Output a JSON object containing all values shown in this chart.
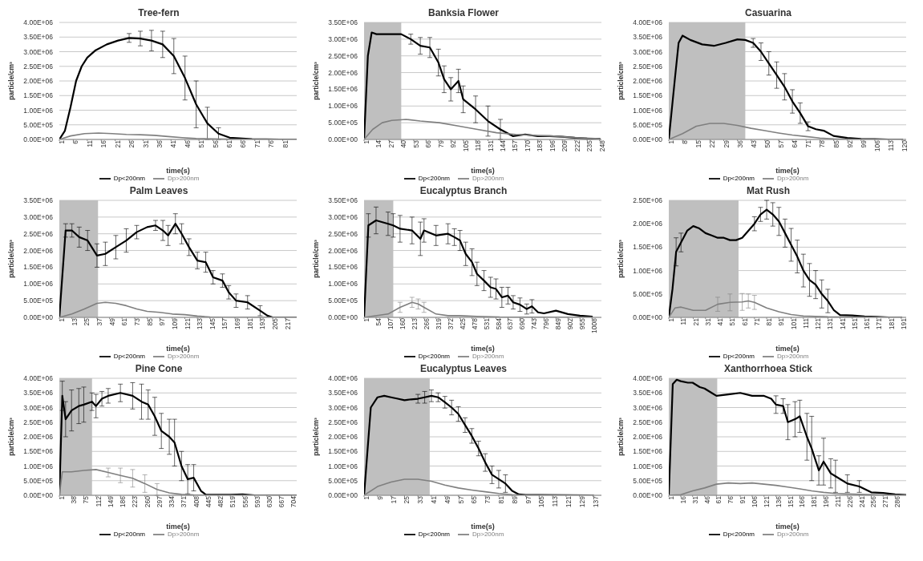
{
  "chart_data": [
    {
      "type": "line",
      "title": "Tree-fern",
      "xlabel": "time(s)",
      "ylabel": "particle/cm³",
      "grid": "y",
      "legend": "bottom",
      "marker": "none",
      "xlim": [
        1,
        86
      ],
      "xticks": [
        1,
        6,
        11,
        16,
        21,
        26,
        31,
        36,
        41,
        46,
        51,
        56,
        61,
        66,
        71,
        76,
        81
      ],
      "ylim": [
        0,
        4000000
      ],
      "yticks": [
        {
          "value": 0,
          "label": "0.00E+00"
        },
        {
          "value": 500000,
          "label": "5.00E+05"
        },
        {
          "value": 1000000,
          "label": "1.00E+06"
        },
        {
          "value": 1500000,
          "label": "1.50E+06"
        },
        {
          "value": 2000000,
          "label": "2.00E+06"
        },
        {
          "value": 2500000,
          "label": "2.50E+06"
        },
        {
          "value": 3000000,
          "label": "3.00E+06"
        },
        {
          "value": 3500000,
          "label": "3.50E+06"
        },
        {
          "value": 4000000,
          "label": "4.00E+06"
        }
      ],
      "series": [
        {
          "name": "Dp<200nm",
          "color": "#000000",
          "x": [
            1,
            3,
            5,
            7,
            9,
            11,
            14,
            18,
            22,
            26,
            30,
            34,
            38,
            42,
            46,
            50,
            54,
            58,
            62,
            70,
            80,
            86
          ],
          "values": [
            0,
            300000.0,
            1100000.0,
            2000000.0,
            2500000.0,
            2800000.0,
            3050000.0,
            3250000.0,
            3380000.0,
            3470000.0,
            3450000.0,
            3380000.0,
            3250000.0,
            2850000.0,
            2100000.0,
            1200000.0,
            550000.0,
            200000.0,
            60000.0,
            10000.0,
            0,
            0
          ],
          "errors": [
            null,
            null,
            null,
            null,
            null,
            null,
            null,
            null,
            null,
            150000.0,
            250000.0,
            350000.0,
            450000.0,
            600000.0,
            750000.0,
            800000.0,
            550000.0,
            200000.0,
            null,
            null,
            null,
            null
          ]
        },
        {
          "name": "Dp>200nm",
          "color": "#7f7f7f",
          "x": [
            1,
            5,
            10,
            15,
            20,
            25,
            30,
            35,
            40,
            45,
            50,
            60,
            70,
            86
          ],
          "values": [
            0,
            120000.0,
            200000.0,
            220000.0,
            200000.0,
            170000.0,
            160000.0,
            140000.0,
            100000.0,
            60000.0,
            30000.0,
            10000.0,
            0,
            0
          ]
        }
      ]
    },
    {
      "type": "line",
      "title": "Banksia Flower",
      "xlabel": "time(s)",
      "ylabel": "particle/cm³",
      "grid": "y",
      "legend": "bottom",
      "marker": "none",
      "xlim": [
        1,
        250
      ],
      "xticks": [
        1,
        14,
        27,
        40,
        53,
        66,
        79,
        92,
        105,
        118,
        131,
        144,
        157,
        170,
        183,
        196,
        209,
        222,
        235,
        248
      ],
      "ylim": [
        0,
        3500000
      ],
      "yticks": [
        {
          "value": 0,
          "label": "0.00E+00"
        },
        {
          "value": 500000,
          "label": "5.00E+05"
        },
        {
          "value": 1000000,
          "label": "1.00E+06"
        },
        {
          "value": 1500000,
          "label": "1.50E+06"
        },
        {
          "value": 2000000,
          "label": "2.00E+06"
        },
        {
          "value": 2500000,
          "label": "2.50E+06"
        },
        {
          "value": 3000000,
          "label": "3.00E+06"
        },
        {
          "value": 3500000,
          "label": "3.50E+06"
        }
      ],
      "bands": [
        {
          "axis": "x",
          "from": 1,
          "to": 40,
          "color": "#bfbfbf"
        }
      ],
      "series": [
        {
          "name": "Dp<200nm",
          "color": "#000000",
          "x": [
            1,
            5,
            9,
            14,
            27,
            40,
            50,
            60,
            70,
            79,
            85,
            92,
            100,
            105,
            118,
            131,
            144,
            157,
            170,
            183,
            196,
            209,
            222,
            235,
            248
          ],
          "values": [
            0,
            2500000.0,
            3200000.0,
            3150000.0,
            3150000.0,
            3150000.0,
            3000000.0,
            2800000.0,
            2750000.0,
            2300000.0,
            1800000.0,
            1500000.0,
            1750000.0,
            1200000.0,
            900000.0,
            550000.0,
            300000.0,
            100000.0,
            150000.0,
            100000.0,
            100000.0,
            80000.0,
            50000.0,
            30000.0,
            20000.0
          ],
          "errors": [
            null,
            null,
            null,
            null,
            null,
            null,
            150000.0,
            250000.0,
            300000.0,
            400000.0,
            400000.0,
            350000.0,
            350000.0,
            400000.0,
            400000.0,
            450000.0,
            300000.0,
            null,
            null,
            null,
            null,
            null,
            null,
            null,
            null
          ]
        },
        {
          "name": "Dp>200nm",
          "color": "#7f7f7f",
          "x": [
            1,
            10,
            20,
            30,
            45,
            60,
            80,
            100,
            120,
            140,
            160,
            180,
            200,
            220,
            248
          ],
          "values": [
            0,
            300000.0,
            500000.0,
            570000.0,
            600000.0,
            550000.0,
            500000.0,
            400000.0,
            300000.0,
            200000.0,
            150000.0,
            120000.0,
            100000.0,
            60000.0,
            20000.0
          ]
        }
      ]
    },
    {
      "type": "line",
      "title": "Casuarina",
      "xlabel": "time(s)",
      "ylabel": "particle/cm³",
      "grid": "y",
      "legend": "bottom",
      "marker": "none",
      "xlim": [
        1,
        122
      ],
      "xticks": [
        1,
        8,
        15,
        22,
        29,
        36,
        43,
        50,
        57,
        64,
        71,
        78,
        85,
        92,
        99,
        106,
        113,
        120
      ],
      "ylim": [
        0,
        4000000
      ],
      "yticks": [
        {
          "value": 0,
          "label": "0.00E+00"
        },
        {
          "value": 500000,
          "label": "5.00E+05"
        },
        {
          "value": 1000000,
          "label": "1.00E+06"
        },
        {
          "value": 1500000,
          "label": "1.50E+06"
        },
        {
          "value": 2000000,
          "label": "2.00E+06"
        },
        {
          "value": 2500000,
          "label": "2.50E+06"
        },
        {
          "value": 3000000,
          "label": "3.00E+06"
        },
        {
          "value": 3500000,
          "label": "3.50E+06"
        },
        {
          "value": 4000000,
          "label": "4.00E+06"
        }
      ],
      "bands": [
        {
          "axis": "x",
          "from": 1,
          "to": 40,
          "color": "#bfbfbf"
        }
      ],
      "series": [
        {
          "name": "Dp<200nm",
          "color": "#000000",
          "x": [
            1,
            4,
            6,
            8,
            12,
            18,
            24,
            30,
            36,
            40,
            44,
            48,
            52,
            56,
            60,
            64,
            68,
            72,
            76,
            80,
            85,
            92,
            99,
            106,
            113,
            120
          ],
          "values": [
            0,
            2000000.0,
            3300000.0,
            3550000.0,
            3400000.0,
            3250000.0,
            3200000.0,
            3300000.0,
            3420000.0,
            3400000.0,
            3300000.0,
            3000000.0,
            2600000.0,
            2200000.0,
            1800000.0,
            1300000.0,
            900000.0,
            450000.0,
            350000.0,
            300000.0,
            120000.0,
            50000.0,
            20000.0,
            10000.0,
            0,
            0
          ],
          "errors": [
            null,
            null,
            null,
            null,
            null,
            null,
            null,
            null,
            null,
            null,
            150000.0,
            300000.0,
            400000.0,
            450000.0,
            450000.0,
            400000.0,
            350000.0,
            150000.0,
            null,
            null,
            null,
            null,
            null,
            null,
            null,
            null
          ]
        },
        {
          "name": "Dp>200nm",
          "color": "#7f7f7f",
          "x": [
            1,
            8,
            15,
            22,
            29,
            36,
            43,
            50,
            57,
            64,
            71,
            78,
            85,
            99,
            120
          ],
          "values": [
            0,
            200000.0,
            450000.0,
            550000.0,
            550000.0,
            480000.0,
            380000.0,
            300000.0,
            220000.0,
            150000.0,
            100000.0,
            50000.0,
            20000.0,
            0,
            0
          ]
        }
      ]
    },
    {
      "type": "line",
      "title": "Palm Leaves",
      "xlabel": "time(s)",
      "ylabel": "particle/cm³",
      "grid": "y",
      "legend": "bottom",
      "marker": "none",
      "xlim": [
        1,
        228
      ],
      "xticks": [
        1,
        13,
        25,
        37,
        49,
        61,
        73,
        85,
        97,
        109,
        121,
        133,
        145,
        157,
        169,
        181,
        193,
        205,
        217
      ],
      "ylim": [
        0,
        3500000
      ],
      "yticks": [
        {
          "value": 0,
          "label": "0.00E+00"
        },
        {
          "value": 500000,
          "label": "5.00E+05"
        },
        {
          "value": 1000000,
          "label": "1.00E+06"
        },
        {
          "value": 1500000,
          "label": "1.50E+06"
        },
        {
          "value": 2000000,
          "label": "2.00E+06"
        },
        {
          "value": 2500000,
          "label": "2.50E+06"
        },
        {
          "value": 3000000,
          "label": "3.00E+06"
        },
        {
          "value": 3500000,
          "label": "3.50E+06"
        }
      ],
      "bands": [
        {
          "axis": "x",
          "from": 1,
          "to": 38,
          "color": "#bfbfbf"
        }
      ],
      "series": [
        {
          "name": "Dp<200nm",
          "color": "#000000",
          "x": [
            1,
            7,
            13,
            20,
            28,
            37,
            45,
            55,
            65,
            75,
            85,
            93,
            100,
            105,
            112,
            118,
            125,
            133,
            141,
            148,
            157,
            163,
            170,
            181,
            193,
            200,
            205,
            217,
            228
          ],
          "values": [
            0,
            2600000.0,
            2600000.0,
            2400000.0,
            2300000.0,
            1850000.0,
            1900000.0,
            2100000.0,
            2300000.0,
            2550000.0,
            2700000.0,
            2750000.0,
            2600000.0,
            2450000.0,
            2800000.0,
            2500000.0,
            2100000.0,
            1700000.0,
            1650000.0,
            1200000.0,
            1100000.0,
            750000.0,
            500000.0,
            450000.0,
            200000.0,
            50000.0,
            0,
            0,
            0
          ],
          "errors": [
            null,
            200000.0,
            200000.0,
            300000.0,
            300000.0,
            350000.0,
            350000.0,
            350000.0,
            350000.0,
            200000.0,
            null,
            150000.0,
            300000.0,
            300000.0,
            300000.0,
            300000.0,
            250000.0,
            250000.0,
            300000.0,
            200000.0,
            200000.0,
            200000.0,
            200000.0,
            200000.0,
            150000.0,
            null,
            null,
            null,
            null
          ]
        },
        {
          "name": "Dp>200nm",
          "color": "#7f7f7f",
          "x": [
            1,
            13,
            25,
            37,
            45,
            55,
            65,
            75,
            85,
            97,
            109,
            121,
            133,
            145,
            160,
            228
          ],
          "values": [
            0,
            100000.0,
            250000.0,
            420000.0,
            450000.0,
            420000.0,
            350000.0,
            250000.0,
            180000.0,
            150000.0,
            100000.0,
            80000.0,
            40000.0,
            10000.0,
            0,
            0
          ]
        }
      ]
    },
    {
      "type": "line",
      "title": "Eucalyptus Branch",
      "xlabel": "time(s)",
      "ylabel": "particle/cm³",
      "grid": "y",
      "legend": "bottom",
      "marker": "none",
      "xlim": [
        1,
        1050
      ],
      "xticks": [
        1,
        54,
        107,
        160,
        213,
        266,
        319,
        372,
        425,
        478,
        531,
        584,
        637,
        690,
        743,
        796,
        849,
        902,
        955,
        1008
      ],
      "ylim": [
        0,
        3500000
      ],
      "yticks": [
        {
          "value": 0,
          "label": "0.00E+00"
        },
        {
          "value": 500000,
          "label": "5.00E+05"
        },
        {
          "value": 1000000,
          "label": "1.00E+06"
        },
        {
          "value": 1500000,
          "label": "1.50E+06"
        },
        {
          "value": 2000000,
          "label": "2.00E+06"
        },
        {
          "value": 2500000,
          "label": "2.50E+06"
        },
        {
          "value": 3000000,
          "label": "3.00E+06"
        },
        {
          "value": 3500000,
          "label": "3.50E+06"
        }
      ],
      "bands": [
        {
          "axis": "x",
          "from": 1,
          "to": 130,
          "color": "#bfbfbf"
        }
      ],
      "series": [
        {
          "name": "Dp<200nm",
          "color": "#000000",
          "x": [
            1,
            20,
            54,
            107,
            130,
            160,
            213,
            250,
            266,
            319,
            372,
            400,
            425,
            450,
            478,
            500,
            531,
            560,
            584,
            610,
            637,
            660,
            690,
            720,
            743,
            770,
            796,
            849,
            902,
            955,
            1008
          ],
          "values": [
            0,
            2750000.0,
            2900000.0,
            2800000.0,
            2750000.0,
            2650000.0,
            2600000.0,
            2350000.0,
            2600000.0,
            2450000.0,
            2500000.0,
            2400000.0,
            2300000.0,
            1900000.0,
            1650000.0,
            1300000.0,
            1100000.0,
            900000.0,
            850000.0,
            600000.0,
            650000.0,
            450000.0,
            380000.0,
            250000.0,
            330000.0,
            150000.0,
            120000.0,
            200000.0,
            100000.0,
            50000.0,
            20000.0
          ],
          "errors": [
            null,
            350000.0,
            400000.0,
            350000.0,
            350000.0,
            400000.0,
            400000.0,
            500000.0,
            350000.0,
            300000.0,
            300000.0,
            250000.0,
            300000.0,
            350000.0,
            400000.0,
            350000.0,
            300000.0,
            300000.0,
            300000.0,
            300000.0,
            250000.0,
            200000.0,
            200000.0,
            150000.0,
            200000.0,
            null,
            null,
            null,
            null,
            null,
            null
          ]
        },
        {
          "name": "Dp>200nm",
          "color": "#7f7f7f",
          "x": [
            1,
            107,
            160,
            213,
            240,
            266,
            319,
            372,
            425,
            500,
            600,
            1008
          ],
          "values": [
            0,
            100000.0,
            300000.0,
            450000.0,
            400000.0,
            300000.0,
            100000.0,
            50000.0,
            50000.0,
            30000.0,
            10000.0,
            0
          ],
          "errors": [
            null,
            null,
            150000.0,
            150000.0,
            150000.0,
            150000.0,
            null,
            null,
            null,
            null,
            null,
            null
          ]
        }
      ]
    },
    {
      "type": "line",
      "title": "Mat Rush",
      "xlabel": "time(s)",
      "ylabel": "particle/cm³",
      "grid": "y",
      "legend": "bottom",
      "marker": "none",
      "xlim": [
        1,
        195
      ],
      "xticks": [
        1,
        11,
        21,
        31,
        41,
        51,
        61,
        71,
        81,
        91,
        101,
        111,
        121,
        131,
        141,
        151,
        161,
        171,
        181,
        191
      ],
      "ylim": [
        0,
        2500000
      ],
      "yticks": [
        {
          "value": 0,
          "label": "0.00E+00"
        },
        {
          "value": 500000,
          "label": "5.00E+05"
        },
        {
          "value": 1000000,
          "label": "1.00E+06"
        },
        {
          "value": 1500000,
          "label": "1.50E+06"
        },
        {
          "value": 2000000,
          "label": "2.00E+06"
        },
        {
          "value": 2500000,
          "label": "2.50E+06"
        }
      ],
      "bands": [
        {
          "axis": "x",
          "from": 1,
          "to": 58,
          "color": "#bfbfbf"
        }
      ],
      "series": [
        {
          "name": "Dp<200nm",
          "color": "#000000",
          "x": [
            1,
            4,
            7,
            11,
            16,
            21,
            26,
            31,
            36,
            41,
            46,
            51,
            56,
            61,
            66,
            71,
            76,
            81,
            86,
            91,
            96,
            101,
            106,
            111,
            116,
            121,
            126,
            131,
            136,
            141,
            151,
            161,
            171,
            181,
            191
          ],
          "values": [
            0,
            600000.0,
            1400000.0,
            1600000.0,
            1850000.0,
            1950000.0,
            1900000.0,
            1800000.0,
            1750000.0,
            1700000.0,
            1700000.0,
            1650000.0,
            1650000.0,
            1700000.0,
            1850000.0,
            2000000.0,
            2200000.0,
            2300000.0,
            2200000.0,
            2050000.0,
            1800000.0,
            1550000.0,
            1300000.0,
            1000000.0,
            800000.0,
            700000.0,
            500000.0,
            350000.0,
            150000.0,
            50000.0,
            40000.0,
            20000.0,
            10000.0,
            0,
            0
          ],
          "errors": [
            null,
            null,
            300000.0,
            200000.0,
            null,
            null,
            null,
            null,
            null,
            null,
            null,
            null,
            null,
            null,
            null,
            150000.0,
            150000.0,
            200000.0,
            250000.0,
            300000.0,
            300000.0,
            350000.0,
            350000.0,
            350000.0,
            350000.0,
            300000.0,
            300000.0,
            250000.0,
            null,
            null,
            null,
            null,
            null,
            null,
            null
          ]
        },
        {
          "name": "Dp>200nm",
          "color": "#7f7f7f",
          "x": [
            1,
            6,
            11,
            21,
            31,
            41,
            51,
            61,
            66,
            71,
            81,
            91,
            101,
            111,
            121,
            131,
            191
          ],
          "values": [
            0,
            200000.0,
            220000.0,
            150000.0,
            150000.0,
            280000.0,
            320000.0,
            330000.0,
            350000.0,
            320000.0,
            200000.0,
            120000.0,
            60000.0,
            30000.0,
            20000.0,
            10000.0,
            0
          ],
          "errors": [
            null,
            null,
            null,
            null,
            null,
            150000.0,
            180000.0,
            180000.0,
            150000.0,
            150000.0,
            null,
            null,
            null,
            null,
            null,
            null,
            null
          ]
        }
      ]
    },
    {
      "type": "line",
      "title": "Pine Cone",
      "xlabel": "time(s)",
      "ylabel": "particle/cm³",
      "grid": "y",
      "legend": "bottom",
      "marker": "none",
      "xlim": [
        1,
        720
      ],
      "xticks": [
        1,
        38,
        75,
        112,
        149,
        186,
        223,
        260,
        297,
        334,
        371,
        408,
        445,
        482,
        519,
        556,
        593,
        630,
        667,
        704
      ],
      "ylim": [
        0,
        4000000
      ],
      "yticks": [
        {
          "value": 0,
          "label": "0.00E+00"
        },
        {
          "value": 500000,
          "label": "5.00E+05"
        },
        {
          "value": 1000000,
          "label": "1.00E+06"
        },
        {
          "value": 1500000,
          "label": "1.50E+06"
        },
        {
          "value": 2000000,
          "label": "2.00E+06"
        },
        {
          "value": 2500000,
          "label": "2.50E+06"
        },
        {
          "value": 3000000,
          "label": "3.00E+06"
        },
        {
          "value": 3500000,
          "label": "3.50E+06"
        },
        {
          "value": 4000000,
          "label": "4.00E+06"
        }
      ],
      "bands": [
        {
          "axis": "x",
          "from": 1,
          "to": 100,
          "color": "#bfbfbf"
        }
      ],
      "series": [
        {
          "name": "Dp<200nm",
          "color": "#000000",
          "x": [
            1,
            10,
            20,
            38,
            60,
            75,
            100,
            112,
            130,
            149,
            186,
            223,
            250,
            270,
            290,
            310,
            334,
            350,
            371,
            390,
            408,
            430,
            445,
            482,
            519,
            556,
            593,
            630,
            667,
            704,
            720
          ],
          "values": [
            0,
            3400000.0,
            2600000.0,
            2900000.0,
            3050000.0,
            3100000.0,
            3200000.0,
            3050000.0,
            3300000.0,
            3400000.0,
            3500000.0,
            3400000.0,
            3200000.0,
            3100000.0,
            2700000.0,
            2200000.0,
            2000000.0,
            1800000.0,
            1000000.0,
            550000.0,
            600000.0,
            150000.0,
            20000.0,
            20000.0,
            20000.0,
            30000.0,
            0,
            0,
            0,
            0,
            0
          ],
          "errors": [
            null,
            500000.0,
            600000.0,
            700000.0,
            600000.0,
            600000.0,
            300000.0,
            400000.0,
            250000.0,
            250000.0,
            300000.0,
            450000.0,
            600000.0,
            500000.0,
            650000.0,
            600000.0,
            600000.0,
            800000.0,
            500000.0,
            500000.0,
            450000.0,
            null,
            null,
            null,
            null,
            null,
            null,
            null,
            null,
            null,
            null
          ]
        },
        {
          "name": "Dp>200nm",
          "color": "#7f7f7f",
          "x": [
            1,
            10,
            38,
            75,
            112,
            149,
            186,
            223,
            260,
            297,
            334,
            371,
            408,
            445,
            720
          ],
          "values": [
            0,
            800000.0,
            800000.0,
            850000.0,
            880000.0,
            780000.0,
            680000.0,
            580000.0,
            400000.0,
            200000.0,
            80000.0,
            30000.0,
            10000.0,
            0,
            0
          ],
          "errors": [
            null,
            null,
            null,
            null,
            null,
            150000.0,
            250000.0,
            300000.0,
            300000.0,
            200000.0,
            null,
            null,
            null,
            null,
            null
          ]
        }
      ]
    },
    {
      "type": "line",
      "title": "Eucalyptus Leaves",
      "xlabel": "time(s)",
      "ylabel": "particle/cm³",
      "grid": "y",
      "legend": "bottom",
      "marker": "none",
      "xlim": [
        1,
        142
      ],
      "xticks": [
        1,
        9,
        17,
        25,
        33,
        41,
        49,
        57,
        65,
        73,
        81,
        89,
        97,
        105,
        113,
        121,
        129,
        137
      ],
      "ylim": [
        0,
        4000000
      ],
      "yticks": [
        {
          "value": 0,
          "label": "0.00E+00"
        },
        {
          "value": 500000,
          "label": "5.00E+05"
        },
        {
          "value": 1000000,
          "label": "1.00E+06"
        },
        {
          "value": 1500000,
          "label": "1.50E+06"
        },
        {
          "value": 2000000,
          "label": "2.00E+06"
        },
        {
          "value": 2500000,
          "label": "2.50E+06"
        },
        {
          "value": 3000000,
          "label": "3.00E+06"
        },
        {
          "value": 3500000,
          "label": "3.50E+06"
        },
        {
          "value": 4000000,
          "label": "4.00E+06"
        }
      ],
      "bands": [
        {
          "axis": "x",
          "from": 1,
          "to": 40,
          "color": "#bfbfbf"
        }
      ],
      "series": [
        {
          "name": "Dp<200nm",
          "color": "#000000",
          "x": [
            1,
            5,
            9,
            13,
            17,
            21,
            25,
            29,
            33,
            37,
            41,
            45,
            49,
            53,
            57,
            61,
            65,
            69,
            73,
            77,
            81,
            85,
            89,
            93,
            97,
            105,
            137
          ],
          "values": [
            0,
            3000000.0,
            3350000.0,
            3400000.0,
            3350000.0,
            3300000.0,
            3250000.0,
            3280000.0,
            3300000.0,
            3350000.0,
            3400000.0,
            3350000.0,
            3180000.0,
            3000000.0,
            2780000.0,
            2400000.0,
            2030000.0,
            1600000.0,
            1120000.0,
            700000.0,
            550000.0,
            400000.0,
            150000.0,
            30000.0,
            10000.0,
            10000.0,
            0
          ],
          "errors": [
            null,
            null,
            null,
            null,
            null,
            null,
            null,
            null,
            150000.0,
            200000.0,
            200000.0,
            150000.0,
            200000.0,
            250000.0,
            250000.0,
            250000.0,
            250000.0,
            250000.0,
            300000.0,
            300000.0,
            300000.0,
            300000.0,
            null,
            null,
            null,
            null,
            null
          ]
        },
        {
          "name": "Dp>200nm",
          "color": "#7f7f7f",
          "x": [
            1,
            9,
            17,
            25,
            33,
            41,
            49,
            57,
            65,
            73,
            81,
            89,
            97,
            137
          ],
          "values": [
            0,
            300000.0,
            450000.0,
            550000.0,
            550000.0,
            480000.0,
            350000.0,
            250000.0,
            180000.0,
            120000.0,
            60000.0,
            20000.0,
            0,
            0
          ]
        }
      ]
    },
    {
      "type": "line",
      "title": "Xanthorrhoea Stick",
      "xlabel": "time(s)",
      "ylabel": "particle/cm³",
      "grid": "y",
      "legend": "bottom",
      "marker": "none",
      "xlim": [
        1,
        300
      ],
      "xticks": [
        1,
        16,
        31,
        46,
        61,
        76,
        91,
        106,
        121,
        136,
        151,
        166,
        181,
        196,
        211,
        226,
        241,
        256,
        271,
        286
      ],
      "ylim": [
        0,
        4000000
      ],
      "yticks": [
        {
          "value": 0,
          "label": "0.00E+00"
        },
        {
          "value": 500000,
          "label": "5.00E+05"
        },
        {
          "value": 1000000,
          "label": "1.00E+06"
        },
        {
          "value": 1500000,
          "label": "1.50E+06"
        },
        {
          "value": 2000000,
          "label": "2.00E+06"
        },
        {
          "value": 2500000,
          "label": "2.50E+06"
        },
        {
          "value": 3000000,
          "label": "3.00E+06"
        },
        {
          "value": 3500000,
          "label": "3.50E+06"
        },
        {
          "value": 4000000,
          "label": "4.00E+06"
        }
      ],
      "bands": [
        {
          "axis": "x",
          "from": 1,
          "to": 62,
          "color": "#bfbfbf"
        }
      ],
      "series": [
        {
          "name": "Dp<200nm",
          "color": "#000000",
          "x": [
            1,
            6,
            11,
            16,
            25,
            31,
            40,
            46,
            55,
            61,
            76,
            91,
            106,
            121,
            130,
            136,
            145,
            151,
            160,
            166,
            175,
            181,
            190,
            196,
            205,
            211,
            226,
            241,
            256,
            271,
            286,
            300
          ],
          "values": [
            0,
            3800000.0,
            3950000.0,
            3900000.0,
            3850000.0,
            3850000.0,
            3700000.0,
            3650000.0,
            3500000.0,
            3400000.0,
            3450000.0,
            3500000.0,
            3400000.0,
            3400000.0,
            3300000.0,
            3100000.0,
            3050000.0,
            2500000.0,
            2600000.0,
            2700000.0,
            2000000.0,
            1600000.0,
            850000.0,
            1150000.0,
            750000.0,
            650000.0,
            400000.0,
            300000.0,
            100000.0,
            80000.0,
            30000.0,
            10000.0
          ],
          "errors": [
            null,
            null,
            null,
            null,
            null,
            null,
            null,
            null,
            null,
            null,
            null,
            null,
            null,
            null,
            null,
            300000.0,
            250000.0,
            600000.0,
            600000.0,
            550000.0,
            800000.0,
            1100000.0,
            500000.0,
            800000.0,
            500000.0,
            550000.0,
            300000.0,
            200000.0,
            null,
            null,
            null,
            null
          ]
        },
        {
          "name": "Dp>200nm",
          "color": "#7f7f7f",
          "x": [
            1,
            16,
            31,
            46,
            61,
            76,
            91,
            106,
            121,
            136,
            151,
            166,
            181,
            196,
            211,
            241,
            271,
            300
          ],
          "values": [
            0,
            20000.0,
            150000.0,
            250000.0,
            380000.0,
            420000.0,
            400000.0,
            420000.0,
            380000.0,
            340000.0,
            280000.0,
            220000.0,
            150000.0,
            100000.0,
            60000.0,
            30000.0,
            10000.0,
            0
          ]
        }
      ]
    }
  ]
}
